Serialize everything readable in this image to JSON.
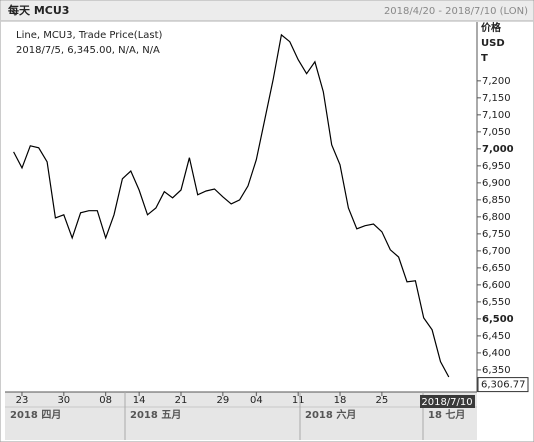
{
  "chart_data": {
    "type": "line",
    "title": "每天 MCU3",
    "date_range": "2018/4/20 - 2018/7/10 (LON)",
    "legend_lines": [
      "Line, MCU3, Trade Price(Last)",
      "2018/7/5, 6,345.00, N/A, N/A"
    ],
    "y_axis_labels": [
      "价格",
      "USD",
      "T"
    ],
    "categories": [
      null,
      "23",
      null,
      null,
      null,
      null,
      "30",
      null,
      null,
      null,
      null,
      "08",
      null,
      null,
      null,
      "14",
      null,
      null,
      null,
      null,
      "21",
      null,
      null,
      null,
      null,
      "29",
      null,
      null,
      null,
      "04",
      null,
      null,
      null,
      null,
      "11",
      null,
      null,
      null,
      null,
      "18",
      null,
      null,
      null,
      null,
      "25",
      null,
      null,
      null,
      null,
      null,
      null,
      null,
      null,
      null,
      null,
      null
    ],
    "x_groups": [
      "2018 四月",
      "2018 五月",
      "2018 六月",
      "18 七月"
    ],
    "cursor_label": "2018/7/10",
    "series": [
      {
        "name": "MCU3",
        "color": "#000000",
        "values": [
          6991,
          6944,
          7009,
          7003,
          6962,
          6797,
          6806,
          6738,
          6812,
          6818,
          6818,
          6738,
          6806,
          6912,
          6935,
          6879,
          6806,
          6826,
          6874,
          6856,
          6879,
          6974,
          6865,
          6876,
          6882,
          6859,
          6838,
          6850,
          6891,
          6968,
          7085,
          7203,
          7335,
          7315,
          7262,
          7221,
          7256,
          7168,
          7012,
          6953,
          6826,
          6765,
          6774,
          6779,
          6756,
          6703,
          6682,
          6609,
          6612,
          6503,
          6468,
          6374,
          6329,
          null,
          null,
          null
        ]
      }
    ],
    "last_price": {
      "value": 6306.77,
      "label": "6,306.77"
    },
    "ylim": [
      6285,
      7373
    ],
    "yticks": [
      {
        "value": 7200,
        "label": "7,200"
      },
      {
        "value": 7150,
        "label": "7,150"
      },
      {
        "value": 7100,
        "label": "7,100"
      },
      {
        "value": 7050,
        "label": "7,050"
      },
      {
        "value": 7000,
        "label": "7,000"
      },
      {
        "value": 6950,
        "label": "6,950"
      },
      {
        "value": 6900,
        "label": "6,900"
      },
      {
        "value": 6850,
        "label": "6,850"
      },
      {
        "value": 6800,
        "label": "6,800"
      },
      {
        "value": 6750,
        "label": "6,750"
      },
      {
        "value": 6700,
        "label": "6,700"
      },
      {
        "value": 6650,
        "label": "6,650"
      },
      {
        "value": 6600,
        "label": "6,600"
      },
      {
        "value": 6550,
        "label": "6,550"
      },
      {
        "value": 6500,
        "label": "6,500"
      },
      {
        "value": 6450,
        "label": "6,450"
      },
      {
        "value": 6400,
        "label": "6,400"
      },
      {
        "value": 6350,
        "label": "6,350"
      }
    ],
    "bold_yticks": [
      7000,
      6500
    ],
    "grid": false
  }
}
